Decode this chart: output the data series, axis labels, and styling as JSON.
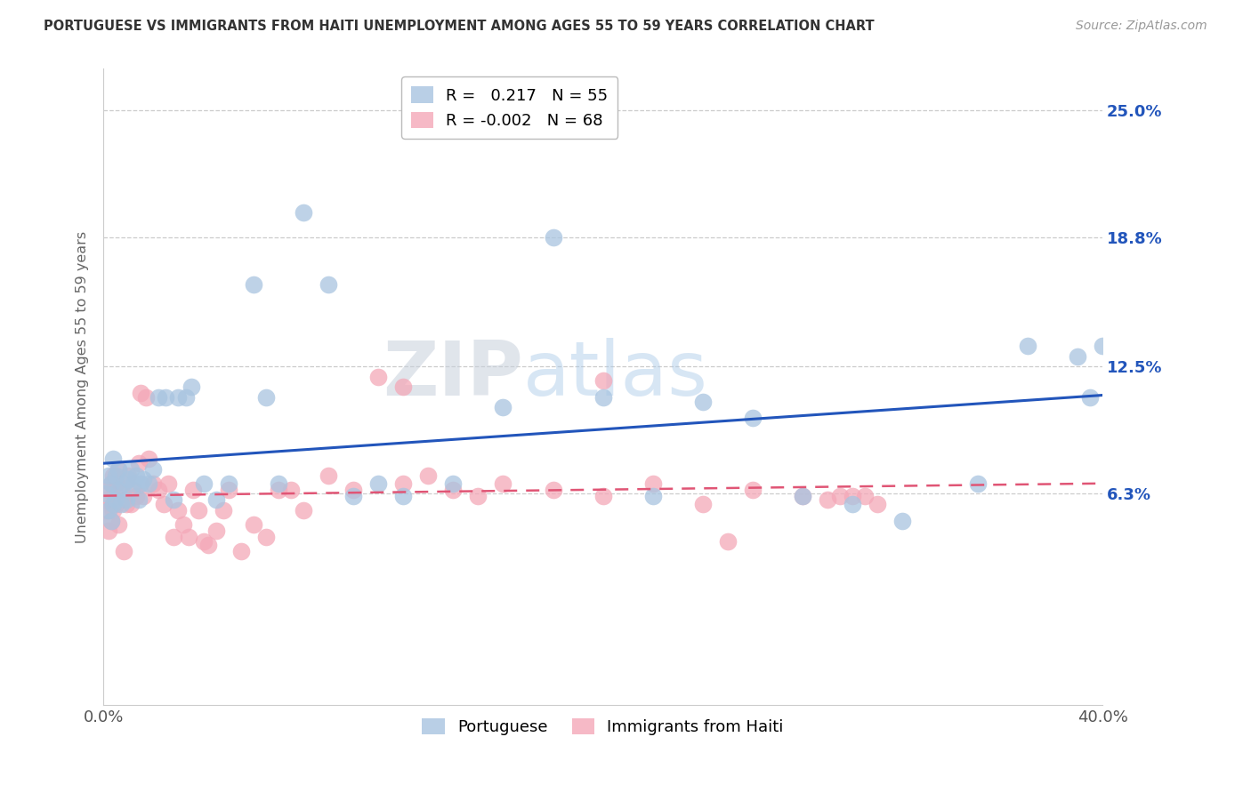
{
  "title": "PORTUGUESE VS IMMIGRANTS FROM HAITI UNEMPLOYMENT AMONG AGES 55 TO 59 YEARS CORRELATION CHART",
  "source": "Source: ZipAtlas.com",
  "ylabel": "Unemployment Among Ages 55 to 59 years",
  "portuguese_R": 0.217,
  "portuguese_N": 55,
  "haiti_R": -0.002,
  "haiti_N": 68,
  "blue_color": "#a8c4e0",
  "pink_color": "#f4a8b8",
  "blue_line_color": "#2255bb",
  "pink_line_color": "#e05575",
  "xmin": 0.0,
  "xmax": 0.4,
  "ymin": -0.04,
  "ymax": 0.27,
  "ytick_positions": [
    0.063,
    0.125,
    0.188,
    0.25
  ],
  "ytick_labels": [
    "6.3%",
    "12.5%",
    "18.8%",
    "25.0%"
  ],
  "portuguese_x": [
    0.001,
    0.002,
    0.002,
    0.003,
    0.003,
    0.004,
    0.004,
    0.005,
    0.005,
    0.006,
    0.006,
    0.007,
    0.008,
    0.009,
    0.01,
    0.011,
    0.012,
    0.013,
    0.014,
    0.015,
    0.016,
    0.018,
    0.02,
    0.022,
    0.025,
    0.028,
    0.03,
    0.033,
    0.035,
    0.04,
    0.045,
    0.05,
    0.06,
    0.065,
    0.07,
    0.08,
    0.09,
    0.1,
    0.11,
    0.12,
    0.14,
    0.16,
    0.18,
    0.2,
    0.22,
    0.24,
    0.26,
    0.28,
    0.3,
    0.32,
    0.35,
    0.37,
    0.39,
    0.395,
    0.4
  ],
  "portuguese_y": [
    0.063,
    0.072,
    0.055,
    0.068,
    0.05,
    0.08,
    0.058,
    0.072,
    0.06,
    0.065,
    0.075,
    0.058,
    0.068,
    0.06,
    0.07,
    0.075,
    0.068,
    0.072,
    0.06,
    0.068,
    0.07,
    0.068,
    0.075,
    0.11,
    0.11,
    0.06,
    0.11,
    0.11,
    0.115,
    0.068,
    0.06,
    0.068,
    0.165,
    0.11,
    0.068,
    0.2,
    0.165,
    0.062,
    0.068,
    0.062,
    0.068,
    0.105,
    0.188,
    0.11,
    0.062,
    0.108,
    0.1,
    0.062,
    0.058,
    0.05,
    0.068,
    0.135,
    0.13,
    0.11,
    0.135
  ],
  "haiti_x": [
    0.001,
    0.001,
    0.002,
    0.002,
    0.003,
    0.003,
    0.004,
    0.004,
    0.005,
    0.005,
    0.006,
    0.006,
    0.007,
    0.008,
    0.008,
    0.009,
    0.01,
    0.011,
    0.012,
    0.013,
    0.014,
    0.015,
    0.016,
    0.017,
    0.018,
    0.02,
    0.022,
    0.024,
    0.026,
    0.028,
    0.03,
    0.032,
    0.034,
    0.036,
    0.038,
    0.04,
    0.042,
    0.045,
    0.048,
    0.05,
    0.055,
    0.06,
    0.065,
    0.07,
    0.075,
    0.08,
    0.09,
    0.1,
    0.11,
    0.12,
    0.13,
    0.14,
    0.15,
    0.16,
    0.18,
    0.2,
    0.22,
    0.24,
    0.26,
    0.28,
    0.295,
    0.305,
    0.25,
    0.3,
    0.2,
    0.12,
    0.29,
    0.31
  ],
  "haiti_y": [
    0.06,
    0.055,
    0.065,
    0.045,
    0.068,
    0.05,
    0.072,
    0.055,
    0.058,
    0.068,
    0.075,
    0.048,
    0.065,
    0.06,
    0.035,
    0.058,
    0.072,
    0.058,
    0.065,
    0.062,
    0.078,
    0.112,
    0.062,
    0.11,
    0.08,
    0.068,
    0.065,
    0.058,
    0.068,
    0.042,
    0.055,
    0.048,
    0.042,
    0.065,
    0.055,
    0.04,
    0.038,
    0.045,
    0.055,
    0.065,
    0.035,
    0.048,
    0.042,
    0.065,
    0.065,
    0.055,
    0.072,
    0.065,
    0.12,
    0.068,
    0.072,
    0.065,
    0.062,
    0.068,
    0.065,
    0.062,
    0.068,
    0.058,
    0.065,
    0.062,
    0.062,
    0.062,
    0.04,
    0.062,
    0.118,
    0.115,
    0.06,
    0.058
  ],
  "watermark_text": "ZIPatlas",
  "watermark_color": "#c8d8ee",
  "scatter_size": 200
}
